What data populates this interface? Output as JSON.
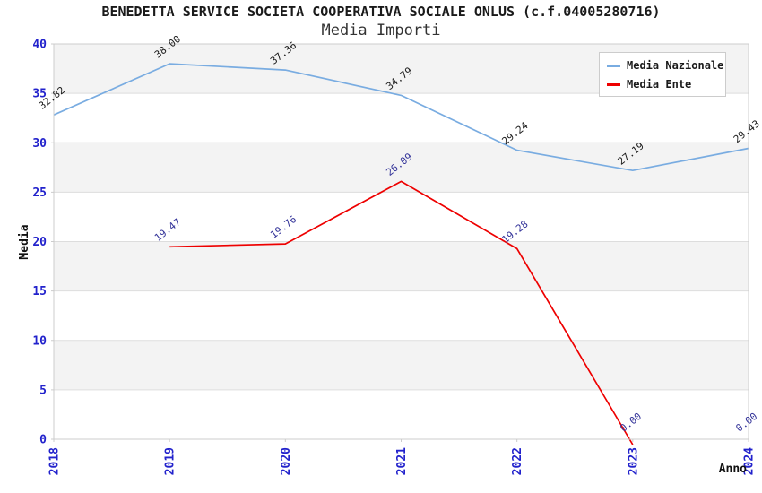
{
  "header": {
    "title": "BENEDETTA SERVICE SOCIETA COOPERATIVA SOCIALE ONLUS (c.f.04005280716)",
    "subtitle": "Media Importi"
  },
  "axes": {
    "x_label": "Anno",
    "y_label": "Media",
    "y_ticks": [
      0,
      5,
      10,
      15,
      20,
      25,
      30,
      35,
      40
    ],
    "x_ticks": [
      "2018",
      "2019",
      "2020",
      "2021",
      "2022",
      "2023",
      "2024"
    ]
  },
  "legend": {
    "position": "top-right",
    "entries": [
      {
        "label": "Media Nazionale",
        "color": "#79ace1"
      },
      {
        "label": "Media Ente",
        "color": "#ee0000"
      }
    ]
  },
  "chart_data": {
    "type": "line",
    "title": "BENEDETTA SERVICE SOCIETA COOPERATIVA SOCIALE ONLUS (c.f.04005280716)",
    "subtitle": "Media Importi",
    "xlabel": "Anno",
    "ylabel": "Media",
    "ylim": [
      0,
      40
    ],
    "grid": "horizontal-only",
    "background_bands": true,
    "legend_position": "top-right",
    "x": [
      "2018",
      "2019",
      "2020",
      "2021",
      "2022",
      "2023",
      "2024"
    ],
    "series": [
      {
        "name": "Media Nazionale",
        "color": "#79ace1",
        "label_color": "#1a1a1a",
        "values": [
          32.82,
          38.0,
          37.36,
          34.79,
          29.24,
          27.19,
          29.43
        ]
      },
      {
        "name": "Media Ente",
        "color": "#ee0000",
        "label_color": "#333399",
        "values": [
          null,
          19.47,
          19.76,
          26.09,
          19.28,
          0.0,
          0.0
        ]
      }
    ]
  },
  "colors": {
    "band": "#f3f3f3",
    "gridline": "#dddddd",
    "plot_border": "#cccccc",
    "tick_label": "#2222cc",
    "axis_title": "#111111"
  }
}
